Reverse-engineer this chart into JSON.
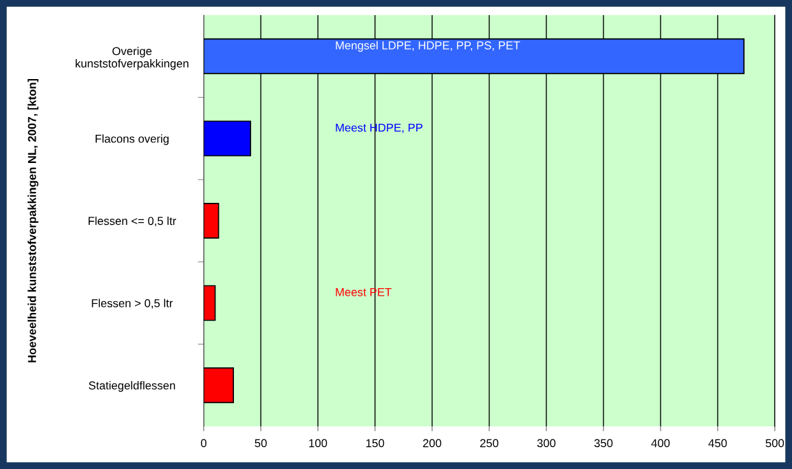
{
  "chart_data": {
    "type": "bar",
    "orientation": "horizontal",
    "ylabel": "Hoeveelheid kunststofverpakkingen NL, 2007, [kton]",
    "categories": [
      "Overige\nkunststofverpakkingen",
      "Flacons overig",
      "Flessen <= 0,5 ltr",
      "Flessen > 0,5 ltr",
      "Statiegeldflessen"
    ],
    "values": [
      473,
      41,
      13,
      10,
      26
    ],
    "colors": [
      "#3366ff",
      "#0000ff",
      "#ff0000",
      "#ff0000",
      "#ff0000"
    ],
    "xlim": [
      0,
      500
    ],
    "xticks": [
      0,
      50,
      100,
      150,
      200,
      250,
      300,
      350,
      400,
      450,
      500
    ],
    "grid": "x",
    "annotations": [
      "Mengsel LDPE, HDPE, PP, PS, PET",
      "Meest HDPE, PP",
      "Meest PET"
    ]
  }
}
